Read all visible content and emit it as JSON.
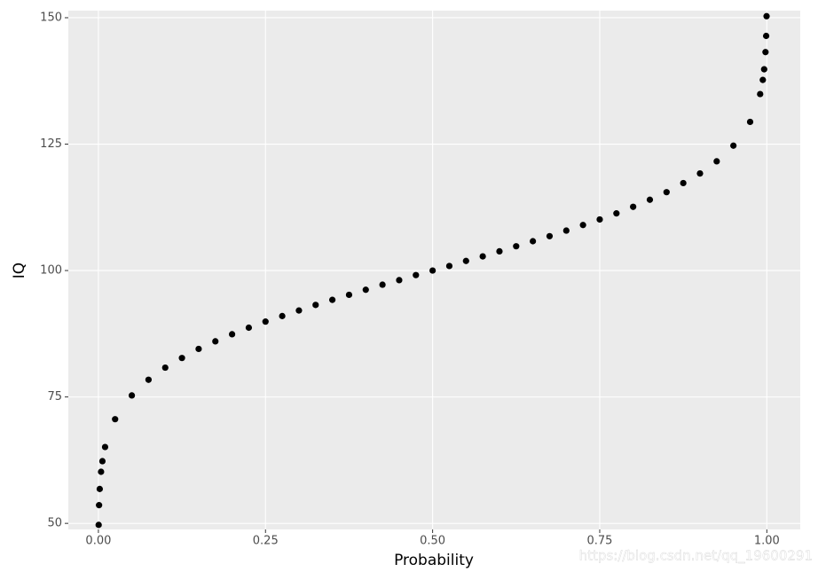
{
  "chart_data": {
    "type": "scatter",
    "x_label": "Probability",
    "y_label": "IQ",
    "watermark": "https://blog.csdn.net/qq_19600291",
    "x": [
      0.0004,
      0.001,
      0.002,
      0.004,
      0.006,
      0.01,
      0.025,
      0.05,
      0.075,
      0.1,
      0.125,
      0.15,
      0.175,
      0.2,
      0.225,
      0.25,
      0.275,
      0.3,
      0.325,
      0.35,
      0.375,
      0.4,
      0.425,
      0.45,
      0.475,
      0.5,
      0.525,
      0.55,
      0.575,
      0.6,
      0.625,
      0.65,
      0.675,
      0.7,
      0.725,
      0.75,
      0.775,
      0.8,
      0.825,
      0.85,
      0.875,
      0.9,
      0.925,
      0.95,
      0.975,
      0.99,
      0.994,
      0.996,
      0.998,
      0.999,
      0.9996
    ],
    "values": [
      49.7,
      53.6,
      56.8,
      60.2,
      62.3,
      65.1,
      70.6,
      75.3,
      78.4,
      80.8,
      82.7,
      84.5,
      86.0,
      87.4,
      88.7,
      89.9,
      91.0,
      92.1,
      93.2,
      94.2,
      95.2,
      96.2,
      97.2,
      98.1,
      99.1,
      100,
      100.9,
      101.9,
      102.8,
      103.8,
      104.8,
      105.8,
      106.8,
      107.9,
      109.0,
      110.1,
      111.3,
      112.6,
      114.0,
      115.5,
      117.3,
      119.2,
      121.6,
      124.7,
      129.4,
      134.9,
      137.7,
      139.8,
      143.2,
      146.4,
      150.3
    ],
    "color": "#000000",
    "xlim": [
      -0.045,
      1.05
    ],
    "ylim": [
      48.8,
      151.4
    ],
    "xticks": [
      {
        "value": 0,
        "label": "0.00"
      },
      0.25,
      {
        "value": 0.5,
        "label": "0.50"
      },
      0.75,
      {
        "value": 1,
        "label": "1.00"
      }
    ],
    "yticks": [
      50,
      75,
      100,
      125,
      150
    ],
    "grid": true
  }
}
